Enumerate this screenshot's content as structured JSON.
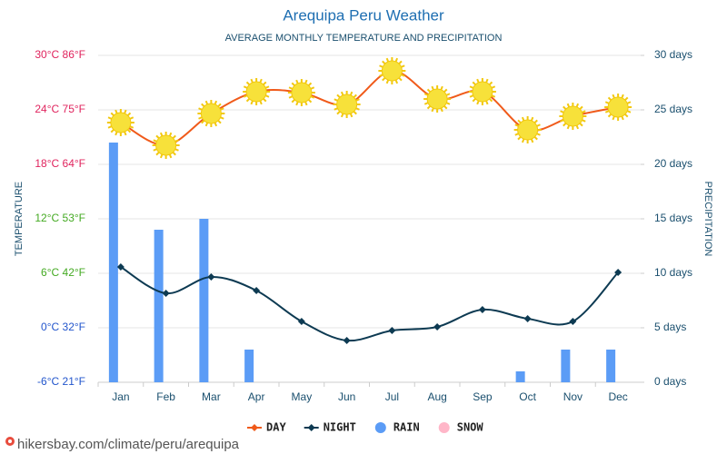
{
  "chart_data": {
    "type": "combo",
    "title": "Arequipa Peru Weather",
    "subtitle": "AVERAGE MONTHLY TEMPERATURE AND PRECIPITATION",
    "y_label": "TEMPERATURE",
    "y2_label": "PRECIPITATION",
    "categories": [
      "Jan",
      "Feb",
      "Mar",
      "Apr",
      "May",
      "Jun",
      "Jul",
      "Aug",
      "Sep",
      "Oct",
      "Nov",
      "Dec"
    ],
    "ylim": [
      -6,
      30
    ],
    "yticks": [
      {
        "value": -6,
        "label": "-6°C 21°F"
      },
      {
        "value": 0,
        "label": "0°C 32°F"
      },
      {
        "value": 6,
        "label": "6°C 42°F"
      },
      {
        "value": 12,
        "label": "12°C 53°F"
      },
      {
        "value": 18,
        "label": "18°C 64°F"
      },
      {
        "value": 24,
        "label": "24°C 75°F"
      },
      {
        "value": 30,
        "label": "30°C 86°F"
      }
    ],
    "ytick_colors": [
      "#2255cc",
      "#2255cc",
      "#44aa22",
      "#44aa22",
      "#e0245e",
      "#e0245e",
      "#e0245e"
    ],
    "y2lim": [
      0,
      30
    ],
    "y2ticks": [
      {
        "value": 0,
        "label": "0 days"
      },
      {
        "value": 5,
        "label": "5 days"
      },
      {
        "value": 10,
        "label": "10 days"
      },
      {
        "value": 15,
        "label": "15 days"
      },
      {
        "value": 20,
        "label": "20 days"
      },
      {
        "value": 25,
        "label": "25 days"
      },
      {
        "value": 30,
        "label": "30 days"
      }
    ],
    "grid": true,
    "series": [
      {
        "name": "DAY",
        "kind": "line",
        "color": "#f05a1a",
        "values": [
          22.6,
          20.1,
          23.6,
          26,
          25.9,
          24.6,
          28.3,
          25.2,
          26,
          21.8,
          23.3,
          24.3
        ]
      },
      {
        "name": "NIGHT",
        "kind": "line",
        "color": "#0d3a52",
        "values": [
          6.7,
          3.8,
          5.6,
          4.1,
          0.7,
          -1.4,
          -0.3,
          0.1,
          2,
          1,
          0.7,
          6.1
        ]
      },
      {
        "name": "RAIN",
        "kind": "bar",
        "axis": "y2",
        "color": "#5b9cf6",
        "values": [
          22,
          14,
          15,
          3,
          0,
          0,
          0,
          0,
          0,
          1,
          3,
          3
        ]
      },
      {
        "name": "SNOW",
        "kind": "bar",
        "axis": "y2",
        "color": "#ffb6c8",
        "values": [
          0,
          0,
          0,
          0,
          0,
          0,
          0,
          0,
          0,
          0,
          0,
          0
        ]
      }
    ],
    "source": "hikersbay.com/climate/peru/arequipa"
  }
}
